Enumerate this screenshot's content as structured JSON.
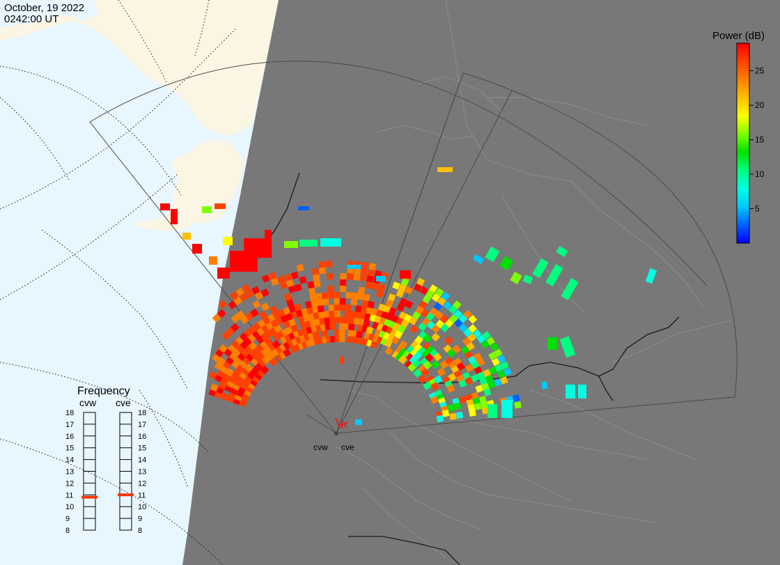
{
  "header": {
    "date": "October, 19 2022",
    "time": "0242:00 UT"
  },
  "colorbar": {
    "title": "Power (dB)",
    "ticks": [
      {
        "label": "25",
        "value": 25
      },
      {
        "label": "20",
        "value": 20
      },
      {
        "label": "15",
        "value": 15
      },
      {
        "label": "10",
        "value": 10
      },
      {
        "label": "5",
        "value": 5
      }
    ],
    "range": [
      0,
      29
    ],
    "colors": [
      "#0000ff",
      "#0060ff",
      "#00c8ff",
      "#00ffe0",
      "#00ff80",
      "#00e000",
      "#80ff00",
      "#ffff00",
      "#ffc000",
      "#ff8000",
      "#ff4000",
      "#ff0000"
    ]
  },
  "frequency": {
    "title": "Frequency",
    "scale": [
      18,
      17,
      16,
      15,
      14,
      13,
      12,
      11,
      10,
      9,
      8
    ],
    "radars": [
      {
        "name": "cvw",
        "value": 10.8
      },
      {
        "name": "cve",
        "value": 11.0
      }
    ]
  },
  "stations": [
    {
      "name": "cvw"
    },
    {
      "name": "cve"
    }
  ],
  "colors": {
    "ocean": "#e8f6ff",
    "land": "#fbf6e4",
    "night": "#787878",
    "fov": "#555555"
  }
}
